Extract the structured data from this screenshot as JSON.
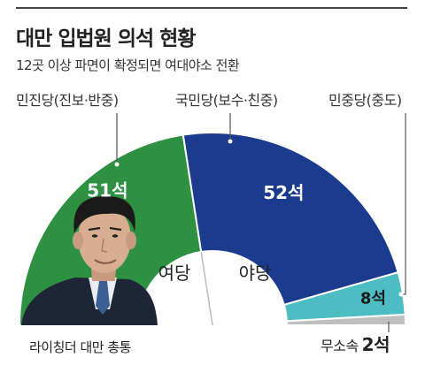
{
  "header": {
    "title": "대만 입법원 의석 현황",
    "subtitle": "12곳 이상 파면이 확정되면 여대야소 전환"
  },
  "labels": {
    "ruling": "여당",
    "opposition": "야당",
    "photo_caption": "라이칭더 대만 총통",
    "independent_label": "무소속",
    "independent_value": "2석"
  },
  "chart_data": {
    "type": "pie",
    "shape": "semicircle-donut",
    "title": "대만 입법원 의석 현황",
    "subtitle": "12곳 이상 파면이 확정되면 여대야소 전환",
    "total": 113,
    "categories": [
      "민진당(진보·반중)",
      "국민당(보수·친중)",
      "민중당(중도)",
      "무소속"
    ],
    "values": [
      51,
      52,
      8,
      2
    ],
    "value_labels": [
      "51석",
      "52석",
      "8석",
      "2석"
    ],
    "colors": [
      "#2e9141",
      "#1b3b8f",
      "#4dbdc4",
      "#bfbfbf"
    ],
    "groups": [
      {
        "name": "여당",
        "members": [
          "민진당(진보·반중)"
        ]
      },
      {
        "name": "야당",
        "members": [
          "국민당(보수·친중)",
          "민중당(중도)"
        ]
      }
    ]
  }
}
